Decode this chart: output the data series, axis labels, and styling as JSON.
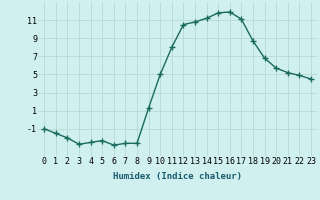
{
  "x": [
    0,
    1,
    2,
    3,
    4,
    5,
    6,
    7,
    8,
    9,
    10,
    11,
    12,
    13,
    14,
    15,
    16,
    17,
    18,
    19,
    20,
    21,
    22,
    23
  ],
  "y": [
    -1,
    -1.5,
    -2,
    -2.7,
    -2.5,
    -2.3,
    -2.8,
    -2.6,
    -2.6,
    1.3,
    5.0,
    8.0,
    10.5,
    10.8,
    11.2,
    11.8,
    11.9,
    11.1,
    8.7,
    6.8,
    5.7,
    5.2,
    4.9,
    4.5
  ],
  "line_color": "#1a7a6e",
  "marker": "D",
  "marker_size": 2.0,
  "line_width": 1.0,
  "xlabel": "Humidex (Indice chaleur)",
  "xlim": [
    -0.5,
    23.5
  ],
  "ylim": [
    -4,
    13
  ],
  "yticks": [
    -1,
    1,
    3,
    5,
    7,
    9,
    11
  ],
  "xticks": [
    0,
    1,
    2,
    3,
    4,
    5,
    6,
    7,
    8,
    9,
    10,
    11,
    12,
    13,
    14,
    15,
    16,
    17,
    18,
    19,
    20,
    21,
    22,
    23
  ],
  "bg_color": "#cff0ee",
  "grid_color": "#b8d8d6",
  "xlabel_fontsize": 6.5,
  "tick_fontsize": 6.0,
  "xlabel_color": "#1a5a6e",
  "line_marker_color": "#1a6a60"
}
